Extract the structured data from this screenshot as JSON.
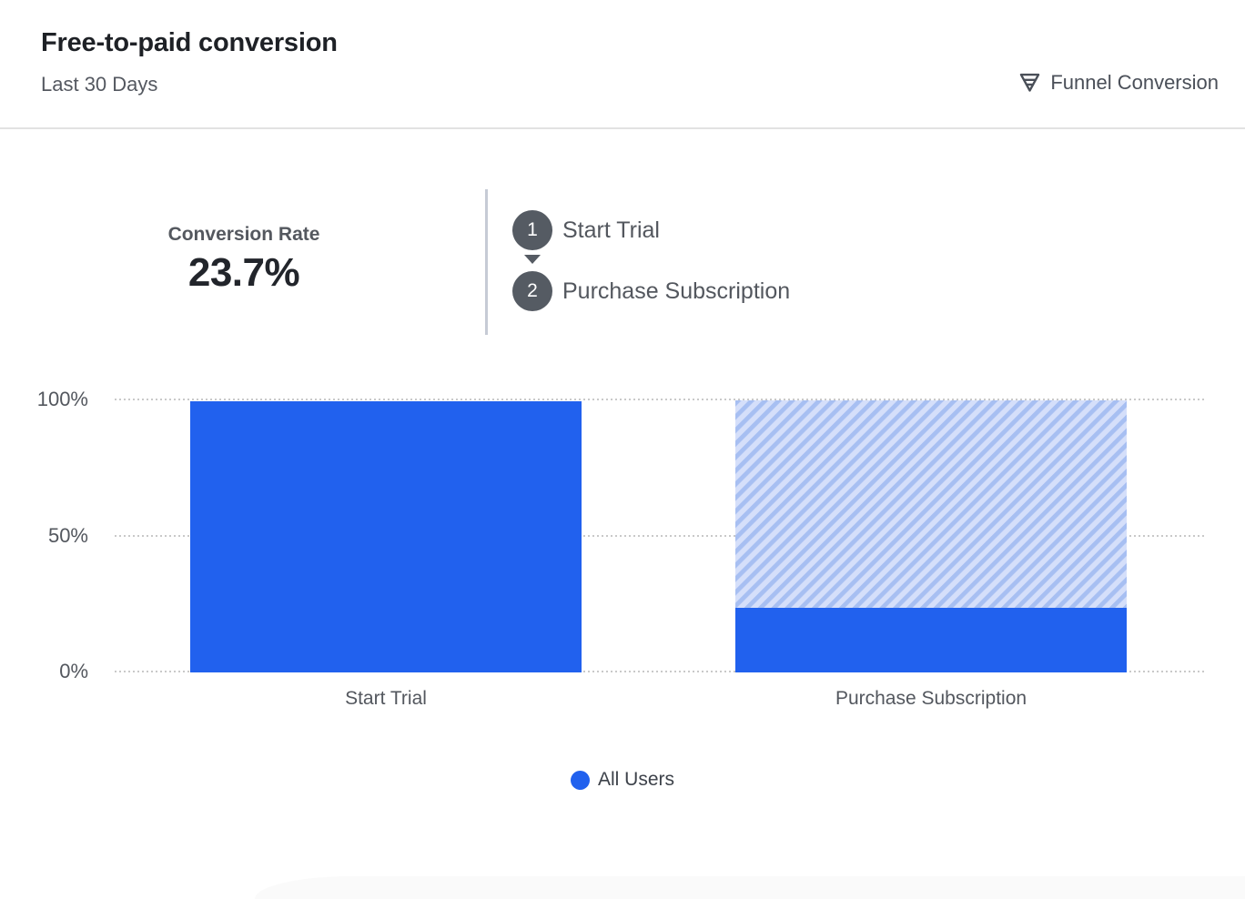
{
  "header": {
    "title": "Free-to-paid conversion",
    "subtitle": "Last 30 Days",
    "view_type": {
      "icon": "funnel-icon",
      "label": "Funnel Conversion"
    }
  },
  "summary": {
    "metric_label": "Conversion Rate",
    "metric_value": "23.7%",
    "steps": [
      {
        "number": "1",
        "label": "Start Trial"
      },
      {
        "number": "2",
        "label": "Purchase Subscription"
      }
    ]
  },
  "chart_data": {
    "type": "bar",
    "subtype": "funnel-conversion",
    "categories": [
      "Start Trial",
      "Purchase Subscription"
    ],
    "series": [
      {
        "name": "All Users",
        "values": [
          100,
          23.7
        ]
      }
    ],
    "value_unit": "%",
    "ylim": [
      0,
      100
    ],
    "yticks": [
      "100%",
      "50%",
      "0%"
    ],
    "grid": "horizontal-dotted",
    "legend_position": "bottom-center",
    "remainder_style": "diagonal-hatch-to-100%"
  },
  "colors": {
    "bar_solid": "#2161ee",
    "hatch_background": "#d5dffa",
    "hatch_stripe": "#a7bff2",
    "step_circle": "#555b63",
    "gridline": "#c9c9c9",
    "accent_text": "#53575e"
  }
}
